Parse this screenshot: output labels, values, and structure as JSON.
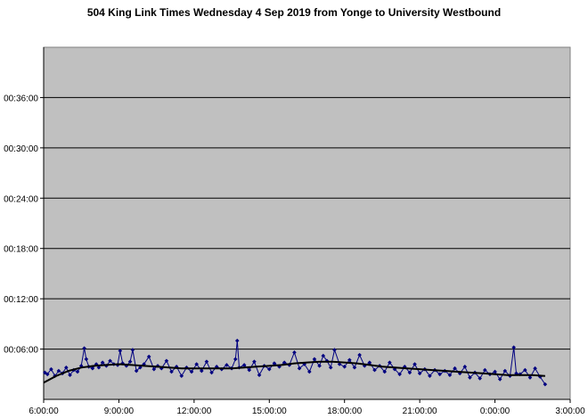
{
  "chart_data": {
    "type": "line",
    "title": "504 King Link Times Wednesday 4 Sep 2019 from Yonge to University Westbound",
    "xlabel": "",
    "ylabel": "",
    "x_unit": "time of day (hours from 0:00, continuing past midnight)",
    "xlim": [
      6,
      27
    ],
    "ylim_minutes": [
      0,
      42
    ],
    "x_ticks": [
      {
        "value": 6,
        "label": "6:00:00"
      },
      {
        "value": 9,
        "label": "9:00:00"
      },
      {
        "value": 12,
        "label": "12:00:00"
      },
      {
        "value": 15,
        "label": "15:00:00"
      },
      {
        "value": 18,
        "label": "18:00:00"
      },
      {
        "value": 21,
        "label": "21:00:00"
      },
      {
        "value": 24,
        "label": "0:00:00"
      },
      {
        "value": 27,
        "label": "3:00:00"
      }
    ],
    "y_ticks": [
      {
        "value": 6,
        "label": "00:06:00"
      },
      {
        "value": 12,
        "label": "00:12:00"
      },
      {
        "value": 18,
        "label": "00:18:00"
      },
      {
        "value": 24,
        "label": "00:24:00"
      },
      {
        "value": 30,
        "label": "00:30:00"
      },
      {
        "value": 36,
        "label": "00:36:00"
      }
    ],
    "grid": "horizontal major gridlines",
    "plot_background": "#c0c0c0",
    "series": [
      {
        "style": "line with diamond markers",
        "color": "#000080",
        "x": [
          6.05,
          6.15,
          6.3,
          6.45,
          6.6,
          6.75,
          6.9,
          7.05,
          7.2,
          7.35,
          7.5,
          7.62,
          7.7,
          7.8,
          7.95,
          8.1,
          8.2,
          8.35,
          8.5,
          8.65,
          8.8,
          8.95,
          9.05,
          9.15,
          9.3,
          9.45,
          9.55,
          9.7,
          9.85,
          10.0,
          10.2,
          10.4,
          10.55,
          10.7,
          10.9,
          11.1,
          11.3,
          11.5,
          11.7,
          11.9,
          12.1,
          12.3,
          12.5,
          12.7,
          12.9,
          13.1,
          13.3,
          13.5,
          13.65,
          13.72,
          13.8,
          14.0,
          14.2,
          14.4,
          14.6,
          14.8,
          15.0,
          15.2,
          15.4,
          15.6,
          15.8,
          16.0,
          16.2,
          16.4,
          16.6,
          16.8,
          17.0,
          17.15,
          17.3,
          17.45,
          17.6,
          17.8,
          18.0,
          18.2,
          18.4,
          18.6,
          18.8,
          19.0,
          19.2,
          19.4,
          19.6,
          19.8,
          20.0,
          20.2,
          20.4,
          20.6,
          20.8,
          21.0,
          21.2,
          21.4,
          21.6,
          21.8,
          22.0,
          22.2,
          22.4,
          22.6,
          22.8,
          23.0,
          23.2,
          23.4,
          23.6,
          23.8,
          24.0,
          24.2,
          24.4,
          24.6,
          24.75,
          24.85,
          25.0,
          25.2,
          25.4,
          25.6,
          25.8,
          26.0
        ],
        "y": [
          3.2,
          3.0,
          3.6,
          2.8,
          3.4,
          3.1,
          3.8,
          2.9,
          3.5,
          3.3,
          4.0,
          6.1,
          4.8,
          3.9,
          3.7,
          4.2,
          3.8,
          4.4,
          4.0,
          4.6,
          4.2,
          4.1,
          5.8,
          4.3,
          4.0,
          4.5,
          5.9,
          3.4,
          3.8,
          4.2,
          5.1,
          3.6,
          4.0,
          3.7,
          4.6,
          3.3,
          3.9,
          2.8,
          3.8,
          3.3,
          4.2,
          3.4,
          4.5,
          3.2,
          3.9,
          3.6,
          4.1,
          3.7,
          4.8,
          7.0,
          3.8,
          4.1,
          3.5,
          4.5,
          2.9,
          4.0,
          3.6,
          4.3,
          3.9,
          4.4,
          4.1,
          5.6,
          3.7,
          4.2,
          3.3,
          4.8,
          4.0,
          5.2,
          4.6,
          3.8,
          5.9,
          4.2,
          3.9,
          4.7,
          3.8,
          5.3,
          4.0,
          4.4,
          3.5,
          4.0,
          3.3,
          4.4,
          3.6,
          3.0,
          3.9,
          3.2,
          4.2,
          3.1,
          3.6,
          2.8,
          3.5,
          3.0,
          3.4,
          2.9,
          3.7,
          3.1,
          3.9,
          2.6,
          3.2,
          2.5,
          3.5,
          3.0,
          3.3,
          2.4,
          3.4,
          2.8,
          6.2,
          3.1,
          3.0,
          3.5,
          2.6,
          3.7,
          2.7,
          1.8
        ]
      },
      {
        "style": "smooth trend line",
        "color": "#000000",
        "x": [
          6.0,
          6.5,
          7.0,
          7.5,
          8.0,
          8.5,
          9.0,
          9.5,
          10.0,
          10.5,
          11.0,
          11.5,
          12.0,
          12.5,
          13.0,
          13.5,
          14.0,
          14.5,
          15.0,
          15.5,
          16.0,
          16.5,
          17.0,
          17.5,
          18.0,
          18.5,
          19.0,
          19.5,
          20.0,
          20.5,
          21.0,
          21.5,
          22.0,
          22.5,
          23.0,
          23.5,
          24.0,
          24.5,
          25.0,
          25.5,
          26.0
        ],
        "y": [
          2.0,
          2.8,
          3.4,
          3.8,
          4.0,
          4.1,
          4.2,
          4.1,
          4.0,
          3.9,
          3.8,
          3.7,
          3.7,
          3.7,
          3.7,
          3.7,
          3.8,
          3.9,
          4.0,
          4.1,
          4.3,
          4.4,
          4.5,
          4.5,
          4.4,
          4.3,
          4.1,
          3.9,
          3.8,
          3.7,
          3.6,
          3.5,
          3.4,
          3.3,
          3.2,
          3.1,
          3.0,
          2.9,
          2.9,
          2.9,
          2.8
        ]
      }
    ]
  }
}
